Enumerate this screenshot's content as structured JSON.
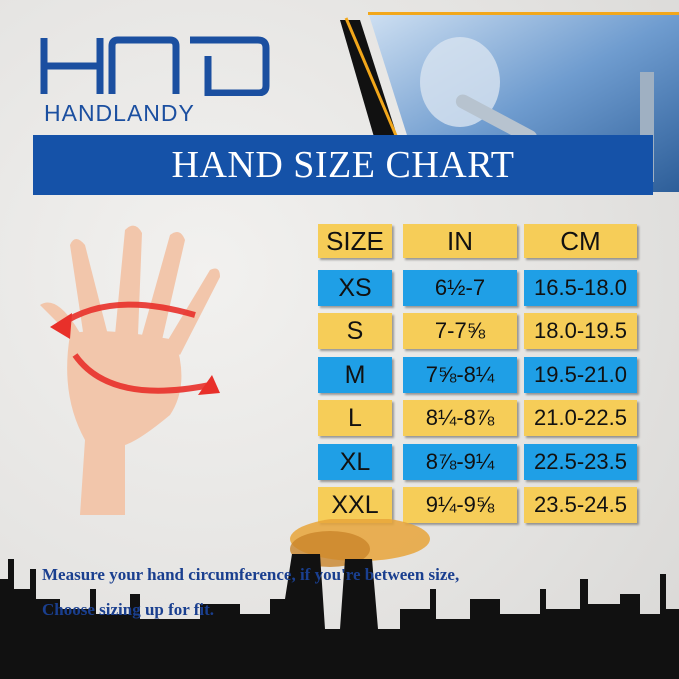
{
  "brand": {
    "logo_mark": "HOD",
    "name": "HANDLANDY"
  },
  "banner": {
    "title": "HAND SIZE CHART"
  },
  "table": {
    "headers": [
      "SIZE",
      "IN",
      "CM"
    ],
    "rows": [
      {
        "size": "XS",
        "in": "6½-7",
        "cm": "16.5-18.0"
      },
      {
        "size": "S",
        "in": "7-7⅝",
        "cm": "18.0-19.5"
      },
      {
        "size": "M",
        "in": "7⅝-8¼",
        "cm": "19.5-21.0"
      },
      {
        "size": "L",
        "in": "8¼-8⅞",
        "cm": "21.0-22.5"
      },
      {
        "size": "XL",
        "in": "8⅞-9¼",
        "cm": "22.5-23.5"
      },
      {
        "size": "XXL",
        "in": "9¼-9⅝",
        "cm": "23.5-24.5"
      }
    ]
  },
  "note": {
    "line1": "Measure your hand circumference, if you're between size,",
    "line2": "Choose sizing up for fit."
  },
  "colors": {
    "yellow": "#f6cd58",
    "blue": "#1f9fe6",
    "brand_blue": "#1552a8",
    "accent_orange": "#f2a71b",
    "arrow_red": "#e8302a"
  }
}
